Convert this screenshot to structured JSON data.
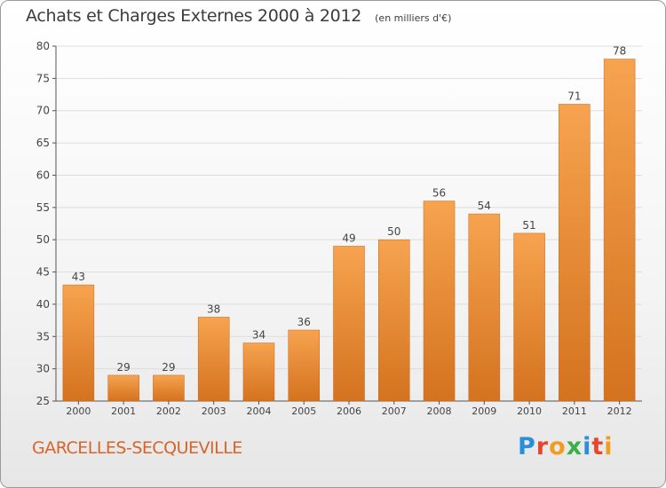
{
  "header": {
    "title": "Achats et Charges Externes 2000 à 2012",
    "unit": "(en milliers d'€)"
  },
  "footer": {
    "commune": "GARCELLES-SECQUEVILLE",
    "logo": "Proxiti",
    "logo_colors": [
      "#2a8fd8",
      "#e8452f",
      "#f29c1f",
      "#3bb04a",
      "#2a8fd8",
      "#e8452f",
      "#f29c1f"
    ]
  },
  "colors": {
    "bar_top": "#f6a34f",
    "bar_bottom": "#d4721f",
    "grid": "#dddddd",
    "axis": "#555555",
    "text": "#444444"
  },
  "chart_data": {
    "type": "bar",
    "title": "Achats et Charges Externes 2000 à 2012",
    "xlabel": "",
    "ylabel": "",
    "categories": [
      "2000",
      "2001",
      "2002",
      "2003",
      "2004",
      "2005",
      "2006",
      "2007",
      "2008",
      "2009",
      "2010",
      "2011",
      "2012"
    ],
    "values": [
      43,
      29,
      29,
      38,
      34,
      36,
      49,
      50,
      56,
      54,
      51,
      71,
      78
    ],
    "ylim": [
      25,
      80
    ],
    "yticks": [
      25,
      30,
      35,
      40,
      45,
      50,
      55,
      60,
      65,
      70,
      75,
      80
    ],
    "grid": true,
    "legend": "none"
  }
}
